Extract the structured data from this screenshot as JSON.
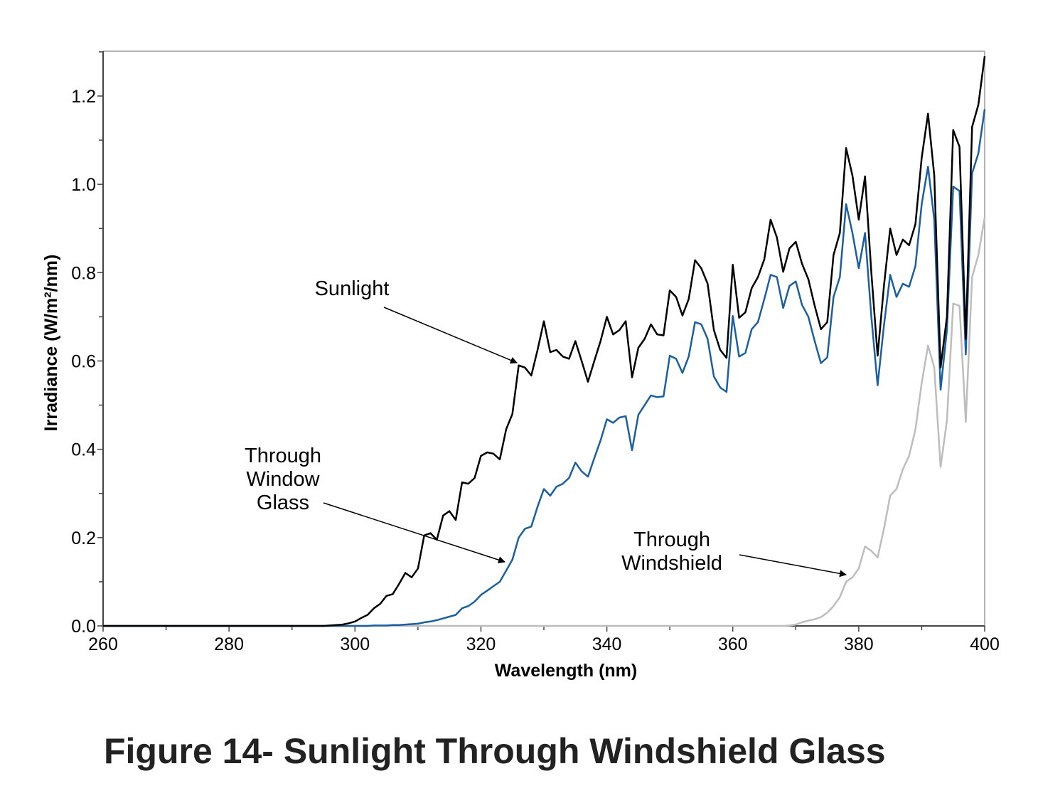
{
  "figure_caption": "Figure 14- Sunlight Through Windshield Glass",
  "chart_data": {
    "type": "line",
    "title": "",
    "xlabel": "Wavelength (nm)",
    "ylabel": "Irradiance (W/m²/nm)",
    "xlim": [
      260,
      400
    ],
    "ylim": [
      0,
      1.3
    ],
    "x_ticks": [
      "260",
      "280",
      "300",
      "320",
      "340",
      "360",
      "380",
      "400"
    ],
    "y_ticks": [
      "0.0",
      "0.2",
      "0.4",
      "0.6",
      "0.8",
      "1.0",
      "1.2"
    ],
    "grid": false,
    "legend": "none",
    "x": [
      260,
      295,
      296,
      297,
      298,
      299,
      300,
      301,
      302,
      303,
      304,
      305,
      306,
      307,
      308,
      309,
      310,
      311,
      312,
      313,
      314,
      315,
      316,
      317,
      318,
      319,
      320,
      321,
      322,
      323,
      324,
      325,
      326,
      327,
      328,
      329,
      330,
      331,
      332,
      333,
      334,
      335,
      336,
      337,
      338,
      339,
      340,
      341,
      342,
      343,
      344,
      345,
      346,
      347,
      348,
      349,
      350,
      351,
      352,
      353,
      354,
      355,
      356,
      357,
      358,
      359,
      360,
      361,
      362,
      363,
      364,
      365,
      366,
      367,
      368,
      369,
      370,
      371,
      372,
      373,
      374,
      375,
      376,
      377,
      378,
      379,
      380,
      381,
      382,
      383,
      384,
      385,
      386,
      387,
      388,
      389,
      390,
      391,
      392,
      393,
      394,
      395,
      396,
      397,
      398,
      399,
      400
    ],
    "series": [
      {
        "name": "Sunlight",
        "color": "#000000",
        "values": [
          0,
          0,
          0.001,
          0.002,
          0.003,
          0.006,
          0.01,
          0.018,
          0.025,
          0.04,
          0.05,
          0.068,
          0.072,
          0.095,
          0.12,
          0.11,
          0.13,
          0.205,
          0.21,
          0.195,
          0.25,
          0.26,
          0.24,
          0.325,
          0.322,
          0.335,
          0.385,
          0.393,
          0.39,
          0.377,
          0.445,
          0.48,
          0.59,
          0.585,
          0.567,
          0.625,
          0.69,
          0.62,
          0.625,
          0.61,
          0.605,
          0.645,
          0.6,
          0.553,
          0.6,
          0.645,
          0.7,
          0.66,
          0.67,
          0.69,
          0.563,
          0.63,
          0.65,
          0.683,
          0.66,
          0.658,
          0.76,
          0.745,
          0.703,
          0.74,
          0.828,
          0.81,
          0.775,
          0.67,
          0.625,
          0.607,
          0.818,
          0.698,
          0.71,
          0.765,
          0.79,
          0.83,
          0.92,
          0.88,
          0.802,
          0.855,
          0.87,
          0.82,
          0.785,
          0.725,
          0.672,
          0.688,
          0.84,
          0.89,
          1.082,
          1.02,
          0.92,
          1.018,
          0.8,
          0.612,
          0.77,
          0.9,
          0.84,
          0.875,
          0.862,
          0.91,
          1.06,
          1.16,
          1.02,
          0.585,
          0.7,
          1.123,
          1.085,
          0.65,
          1.13,
          1.18,
          1.29
        ]
      },
      {
        "name": "Through Window Glass",
        "color": "#1a5fa0",
        "values": [
          0,
          0,
          0,
          0,
          0,
          0,
          0,
          0,
          0,
          0.001,
          0.001,
          0.001,
          0.002,
          0.002,
          0.003,
          0.004,
          0.005,
          0.008,
          0.01,
          0.013,
          0.017,
          0.021,
          0.025,
          0.04,
          0.045,
          0.055,
          0.07,
          0.08,
          0.09,
          0.1,
          0.125,
          0.15,
          0.2,
          0.22,
          0.225,
          0.27,
          0.31,
          0.295,
          0.315,
          0.322,
          0.335,
          0.37,
          0.35,
          0.338,
          0.38,
          0.42,
          0.468,
          0.46,
          0.472,
          0.475,
          0.398,
          0.478,
          0.5,
          0.522,
          0.518,
          0.52,
          0.612,
          0.605,
          0.573,
          0.61,
          0.688,
          0.683,
          0.65,
          0.565,
          0.54,
          0.53,
          0.702,
          0.61,
          0.618,
          0.672,
          0.688,
          0.74,
          0.795,
          0.79,
          0.72,
          0.77,
          0.78,
          0.727,
          0.7,
          0.645,
          0.595,
          0.608,
          0.745,
          0.79,
          0.955,
          0.89,
          0.81,
          0.89,
          0.7,
          0.545,
          0.68,
          0.795,
          0.745,
          0.775,
          0.768,
          0.815,
          0.955,
          1.04,
          0.92,
          0.535,
          0.67,
          0.995,
          0.985,
          0.615,
          1.025,
          1.07,
          1.17
        ]
      },
      {
        "name": "Through Windshield",
        "color": "#bdbdbd",
        "values": [
          0,
          0,
          0,
          0,
          0,
          0,
          0,
          0,
          0,
          0,
          0,
          0,
          0,
          0,
          0,
          0,
          0,
          0,
          0,
          0,
          0,
          0,
          0,
          0,
          0,
          0,
          0,
          0,
          0,
          0,
          0,
          0,
          0,
          0,
          0,
          0,
          0,
          0,
          0,
          0,
          0,
          0,
          0,
          0,
          0,
          0,
          0,
          0,
          0,
          0,
          0,
          0,
          0,
          0,
          0,
          0,
          0,
          0,
          0,
          0,
          0,
          0,
          0,
          0,
          0,
          0,
          0,
          0,
          0,
          0,
          0,
          0,
          0,
          0,
          0,
          0.001,
          0.003,
          0.008,
          0.012,
          0.015,
          0.02,
          0.03,
          0.045,
          0.065,
          0.1,
          0.11,
          0.13,
          0.18,
          0.17,
          0.155,
          0.22,
          0.295,
          0.31,
          0.355,
          0.385,
          0.445,
          0.55,
          0.635,
          0.585,
          0.36,
          0.465,
          0.73,
          0.725,
          0.462,
          0.79,
          0.84,
          0.925
        ]
      }
    ],
    "annotations": [
      {
        "lines": [
          "Sunlight"
        ],
        "series": "Sunlight",
        "points_to_x": 325.8
      },
      {
        "lines": [
          "Through",
          "Window",
          "Glass"
        ],
        "series": "Through Window Glass",
        "points_to_x": 324.5
      },
      {
        "lines": [
          "Through",
          "Windshield"
        ],
        "series": "Through Windshield",
        "points_to_x": 377.5
      }
    ]
  }
}
